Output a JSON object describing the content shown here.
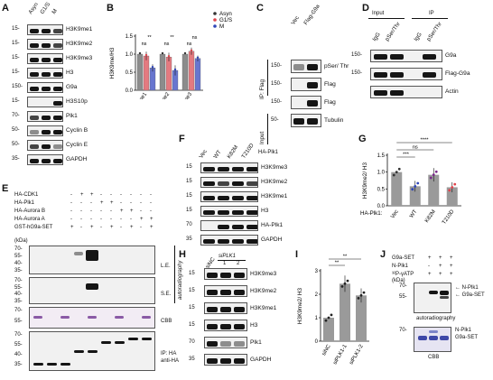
{
  "panels": {
    "A": {
      "label": "A",
      "lanes": [
        "Asyn",
        "G1/S",
        "M"
      ],
      "rows": [
        {
          "mw": "15-",
          "name": "H3K9me1"
        },
        {
          "mw": "15-",
          "name": "H3K9me2"
        },
        {
          "mw": "15-",
          "name": "H3K9me3"
        },
        {
          "mw": "15-",
          "name": "H3"
        },
        {
          "mw": "150-",
          "name": "G9a"
        },
        {
          "mw": "15-",
          "name": "H3S10p"
        },
        {
          "mw": "70-",
          "name": "Plk1"
        },
        {
          "mw": "50-",
          "name": "Cyclin B"
        },
        {
          "mw": "50-",
          "name": "Cyclin E"
        },
        {
          "mw": "35-",
          "name": "GAPDH"
        }
      ]
    },
    "B": {
      "label": "B",
      "ylabel": "H3K9me/H3",
      "yticks": [
        "0.0",
        "0.5",
        "1.0",
        "1.5"
      ],
      "sig": [
        [
          "ns",
          "**"
        ],
        [
          "ns",
          "**"
        ],
        [
          "ns",
          "ns"
        ]
      ]
    },
    "C": {
      "label": "C",
      "lanes": [
        "Vec",
        "Flag-G9a"
      ],
      "rows": [
        {
          "mw": "150-",
          "name": "pSer/ Thr"
        },
        {
          "mw": "150-",
          "name": "Flag"
        },
        {
          "mw": "150-",
          "name": "Flag"
        },
        {
          "mw": "50-",
          "name": "Tubulin"
        }
      ],
      "ip_label": "IP: Flag",
      "input_label": "Input"
    },
    "D": {
      "label": "D",
      "group_input": "Input",
      "group_ip": "IP",
      "lanes": [
        "IgG",
        "pSer/Thr",
        "IgG",
        "pSer/Thr"
      ],
      "rows": [
        {
          "mw": "150-",
          "name": "G9a"
        },
        {
          "mw": "150-",
          "name": "Flag-G9a"
        },
        {
          "mw": "",
          "name": "Actin"
        }
      ]
    },
    "E": {
      "label": "E",
      "rows_left": [
        "HA-CDK1",
        "HA-Plk1",
        "HA-Aurora B",
        "HA-Aurora A",
        "GST-hG9a-SET"
      ],
      "signs": [
        [
          "-",
          "+",
          "+",
          "-",
          "-",
          "-",
          "-",
          "-",
          "-"
        ],
        [
          "-",
          "-",
          "-",
          "+",
          "+",
          "-",
          "-",
          "-",
          "-"
        ],
        [
          "-",
          "-",
          "-",
          "-",
          "-",
          "+",
          "+",
          "-",
          "-"
        ],
        [
          "-",
          "-",
          "-",
          "-",
          "-",
          "-",
          "-",
          "+",
          "+"
        ],
        [
          "+",
          "-",
          "+",
          "-",
          "+",
          "-",
          "+",
          "-",
          "+"
        ]
      ],
      "kda": "(kDa)",
      "mw_le": [
        "70-",
        "55-",
        "40-",
        "35-"
      ],
      "mw_se": [
        "70-",
        "55-",
        "40-",
        "35-"
      ],
      "mw_cbb": [
        "70-",
        "55-"
      ],
      "mw_ip": [
        "70-",
        "55-",
        "40-",
        "35-"
      ],
      "tags": {
        "le": "L.E.",
        "se": "S.E.",
        "cbb": "CBB",
        "ip1": "IP: HA",
        "ip2": "anti-HA",
        "autorad": "autoradiography"
      }
    },
    "F": {
      "label": "F",
      "lanes": [
        "Vec",
        "WT",
        "K82M",
        "T210D"
      ],
      "header": "HA-Plk1",
      "rows": [
        {
          "mw": "15",
          "name": "H3K9me3"
        },
        {
          "mw": "15",
          "name": "H3K9me2"
        },
        {
          "mw": "15",
          "name": "H3K9me1"
        },
        {
          "mw": "15",
          "name": "H3"
        },
        {
          "mw": "70",
          "name": "HA-Plk1"
        },
        {
          "mw": "35",
          "name": "GAPDH"
        }
      ]
    },
    "G": {
      "label": "G",
      "ylabel": "H3K9me2/ H3",
      "xlabel_prefix": "HA-Plk1:",
      "yticks": [
        "0.0",
        "0.5",
        "1.0",
        "1.5"
      ],
      "sig": [
        "***",
        "ns",
        "****"
      ]
    },
    "H": {
      "label": "H",
      "lanes": [
        "siNC",
        "siPLK1"
      ],
      "lane_nums": [
        "1",
        "2"
      ],
      "rows": [
        {
          "mw": "15",
          "name": "H3K9me3"
        },
        {
          "mw": "15",
          "name": "H3K9me2"
        },
        {
          "mw": "15",
          "name": "H3K9me1"
        },
        {
          "mw": "15",
          "name": "H3"
        },
        {
          "mw": "70",
          "name": "Plk1"
        },
        {
          "mw": "35",
          "name": "GAPDH"
        }
      ]
    },
    "I": {
      "label": "I",
      "ylabel": "H3K9me2/ H3",
      "yticks": [
        "0",
        "1",
        "2",
        "3"
      ],
      "sig": [
        "**",
        "**"
      ]
    },
    "J": {
      "label": "J",
      "rows_left": [
        "G9a-SET",
        "N-Plk1",
        "³²P-γATP"
      ],
      "signs": [
        [
          "+",
          "+",
          "+"
        ],
        [
          "-",
          "+",
          "+"
        ],
        [
          "+",
          "+",
          "+"
        ]
      ],
      "kda": "(kDa)",
      "mw1": [
        "70-",
        "55-"
      ],
      "mw2": [
        "70-"
      ],
      "right1": [
        "N-Plk1",
        "G9a-SET"
      ],
      "right2": [
        "N-Plk1",
        "G9a-SET"
      ],
      "tag1": "autoradiography",
      "tag2": "CBB"
    }
  },
  "chart_data": [
    {
      "type": "bar",
      "title": "",
      "categories": [
        "H3K9me1",
        "H3K9me2",
        "H3K9me3"
      ],
      "series": [
        {
          "name": "Asyn",
          "values": [
            1.0,
            1.0,
            1.0
          ],
          "color": "#333333"
        },
        {
          "name": "G1/S",
          "values": [
            0.95,
            0.92,
            1.08
          ],
          "color": "#e0434c"
        },
        {
          "name": "M",
          "values": [
            0.62,
            0.55,
            0.88
          ],
          "color": "#2f46b8"
        }
      ],
      "errors": [
        [
          0.0,
          0.0,
          0.0
        ],
        [
          0.12,
          0.12,
          0.1
        ],
        [
          0.1,
          0.14,
          0.08
        ]
      ],
      "ylabel": "H3K9me/H3",
      "ylim": [
        0,
        1.5
      ],
      "legend": "top-right"
    },
    {
      "type": "bar",
      "categories": [
        "Vec",
        "WT",
        "K82M",
        "T210D"
      ],
      "values": [
        1.0,
        0.58,
        0.92,
        0.55
      ],
      "errors": [
        0.0,
        0.16,
        0.2,
        0.15
      ],
      "colors": [
        "#333333",
        "#2f46b8",
        "#7a2a8a",
        "#e0434c"
      ],
      "ylabel": "H3K9me2/ H3",
      "ylim": [
        0,
        1.5
      ]
    },
    {
      "type": "bar",
      "categories": [
        "siNC",
        "siPLK1-1",
        "siPLK1-2"
      ],
      "values": [
        1.0,
        2.45,
        1.95
      ],
      "errors": [
        0.0,
        0.35,
        0.3
      ],
      "colors": [
        "#333333",
        "#333333",
        "#333333"
      ],
      "ylabel": "H3K9me2/ H3",
      "ylim": [
        0,
        3
      ]
    }
  ]
}
